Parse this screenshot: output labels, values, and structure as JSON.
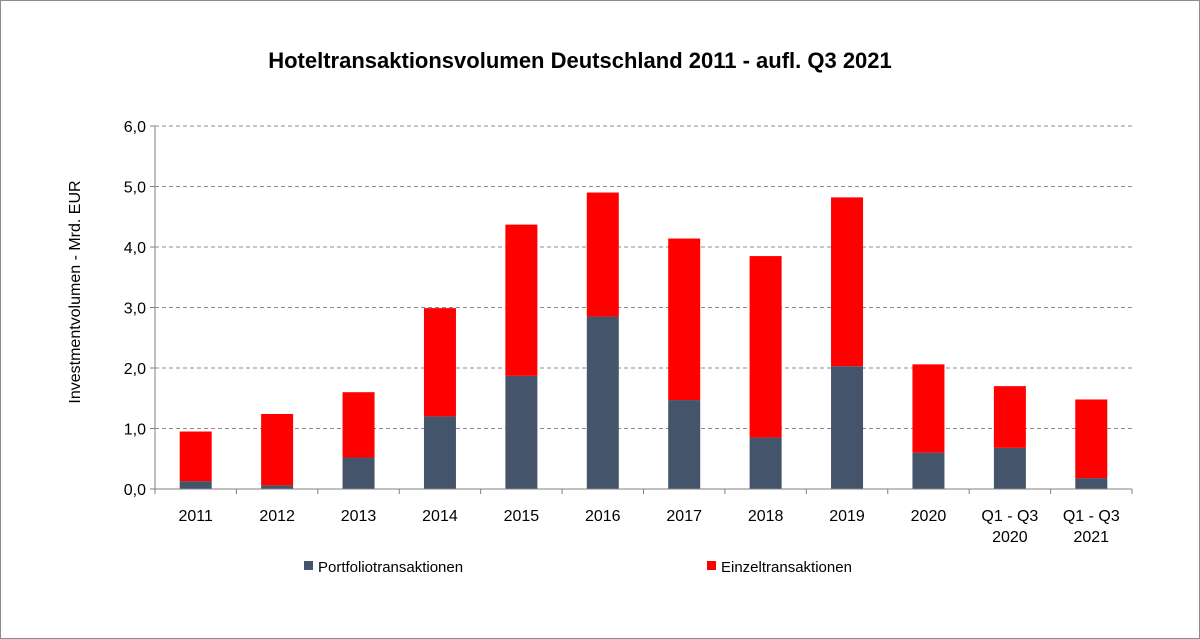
{
  "chart_data": {
    "type": "bar",
    "stacked": true,
    "title": "Hoteltransaktionsvolumen Deutschland 2011 - aufl. Q3 2021",
    "ylabel": "Investmentvolumen - Mrd. EUR",
    "xlabel": "",
    "ylim": [
      0,
      6
    ],
    "ytick_values": [
      0,
      1,
      2,
      3,
      4,
      5,
      6
    ],
    "ytick_labels": [
      "0,0",
      "1,0",
      "2,0",
      "3,0",
      "4,0",
      "5,0",
      "6,0"
    ],
    "grid": true,
    "categories": [
      [
        "2011"
      ],
      [
        "2012"
      ],
      [
        "2013"
      ],
      [
        "2014"
      ],
      [
        "2015"
      ],
      [
        "2016"
      ],
      [
        "2017"
      ],
      [
        "2018"
      ],
      [
        "2019"
      ],
      [
        "2020"
      ],
      [
        "Q1 - Q3",
        "2020"
      ],
      [
        "Q1 - Q3",
        "2021"
      ]
    ],
    "series": [
      {
        "name": "Portfoliotransaktionen",
        "color": "#44546a",
        "values": [
          0.13,
          0.06,
          0.52,
          1.2,
          1.87,
          2.85,
          1.47,
          0.85,
          2.03,
          0.6,
          0.68,
          0.18
        ]
      },
      {
        "name": "Einzeltransaktionen",
        "color": "#ff0000",
        "values": [
          0.82,
          1.18,
          1.08,
          1.79,
          2.5,
          2.05,
          2.67,
          3.0,
          2.79,
          1.46,
          1.02,
          1.3
        ]
      }
    ],
    "legend_position": "bottom"
  }
}
